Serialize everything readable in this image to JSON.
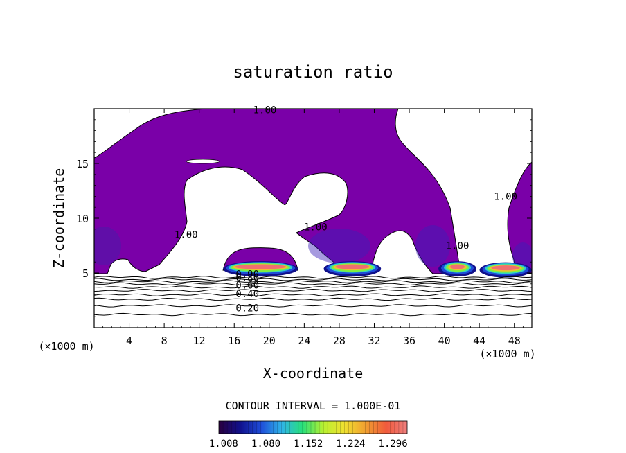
{
  "chart_data": {
    "type": "contour",
    "title": "saturation ratio",
    "xlabel": "X-coordinate",
    "ylabel": "Z-coordinate",
    "x_unit_left": "(×1000 m)",
    "x_unit_right": "(×1000 m)",
    "xlim": [
      0,
      50
    ],
    "ylim": [
      0,
      20
    ],
    "xticks": [
      4,
      8,
      12,
      16,
      20,
      24,
      28,
      32,
      36,
      40,
      44,
      48
    ],
    "yticks": [
      5,
      10,
      15
    ],
    "contour_interval_text": "CONTOUR INTERVAL = 1.000E-01",
    "contour_labels": [
      {
        "text": "1.00",
        "x": 19.5,
        "z": 19.9
      },
      {
        "text": "1.00",
        "x": 10.5,
        "z": 8.5
      },
      {
        "text": "1.00",
        "x": 25.3,
        "z": 9.2
      },
      {
        "text": "1.00",
        "x": 41.5,
        "z": 7.5
      },
      {
        "text": "1.00",
        "x": 47.0,
        "z": 12.0
      },
      {
        "text": "0.90",
        "x": 17.5,
        "z": 4.9
      },
      {
        "text": "0.80",
        "x": 17.5,
        "z": 4.6
      },
      {
        "text": "0.60",
        "x": 17.5,
        "z": 3.9
      },
      {
        "text": "0.40",
        "x": 17.5,
        "z": 3.1
      },
      {
        "text": "0.20",
        "x": 17.5,
        "z": 1.8
      }
    ],
    "isolines_below_5km": [
      4.6,
      4.4,
      4.2,
      4.0,
      3.7,
      3.4,
      3.0,
      2.6,
      2.0,
      1.2
    ],
    "colorbar": {
      "min": 1.0,
      "max": 1.32,
      "ticks": [
        "1.008",
        "1.080",
        "1.152",
        "1.224",
        "1.296"
      ],
      "colors": [
        "#2a0040",
        "#10108a",
        "#1e4bd8",
        "#2fb4e8",
        "#27e07a",
        "#b8f030",
        "#f0e030",
        "#f0a030",
        "#f05a3c",
        "#f08080"
      ]
    },
    "fill_color": "#7a00a8",
    "supersaturated_cores": [
      {
        "x_center": 19.0,
        "z_center": 5.5,
        "x_halfwidth": 3.8
      },
      {
        "x_center": 29.5,
        "z_center": 5.5,
        "x_halfwidth": 2.8
      },
      {
        "x_center": 41.5,
        "z_center": 5.5,
        "x_halfwidth": 1.7
      },
      {
        "x_center": 47.0,
        "z_center": 5.4,
        "x_halfwidth": 2.5
      }
    ]
  }
}
